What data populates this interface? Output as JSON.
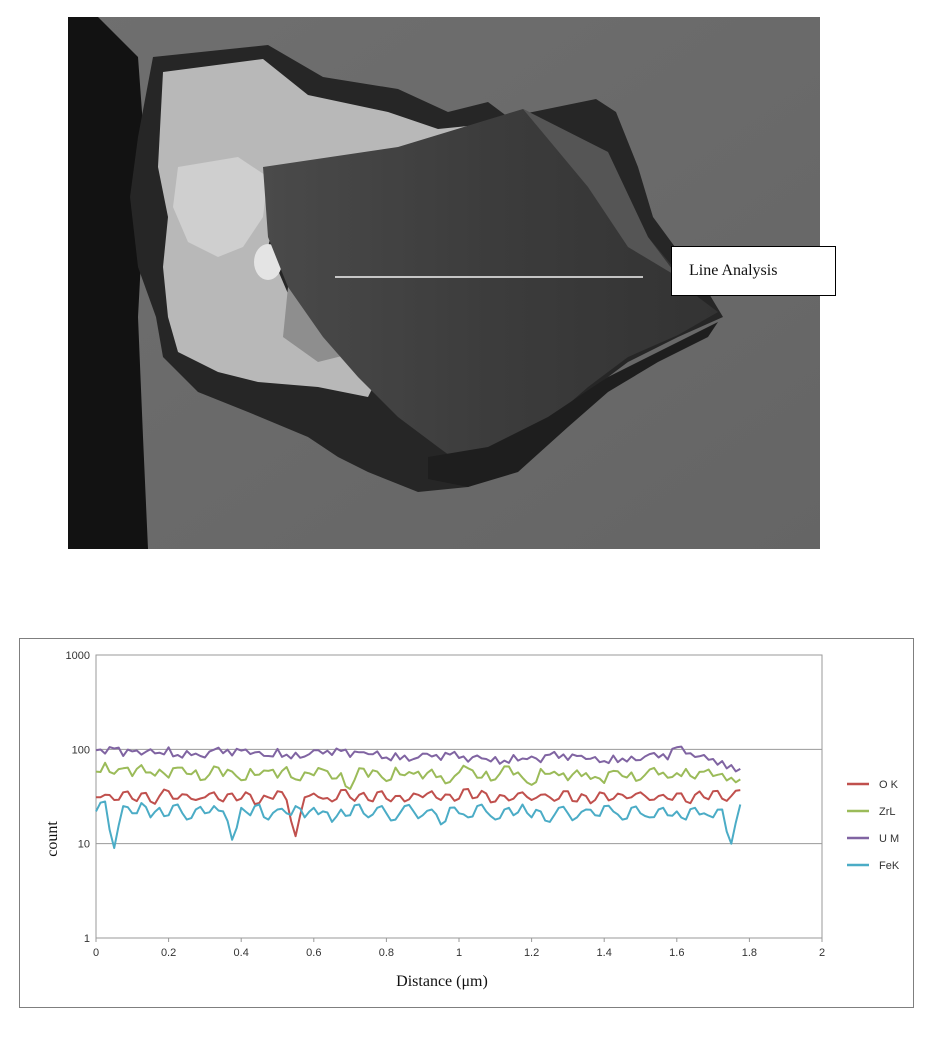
{
  "micrograph": {
    "callout_label": "Line Analysis"
  },
  "chart_data": {
    "type": "line",
    "xlabel": "Distance (μm)",
    "ylabel": "count",
    "xlim": [
      0,
      2
    ],
    "ylim": [
      1,
      1000
    ],
    "yscale": "log",
    "x_ticks": [
      "0",
      "0.2",
      "0.4",
      "0.6",
      "0.8",
      "1",
      "1.2",
      "1.4",
      "1.6",
      "1.8",
      "2"
    ],
    "y_ticks": [
      "1",
      "10",
      "100",
      "1000"
    ],
    "grid": "horizontal",
    "legend_position": "right",
    "x_start": 0,
    "x_step": 0.025,
    "series": [
      {
        "name": "O K",
        "color": "#c0504d",
        "values": [
          31,
          33,
          29,
          35,
          30,
          34,
          28,
          32,
          36,
          30,
          33,
          29,
          31,
          35,
          28,
          34,
          30,
          33,
          27,
          31,
          36,
          29,
          12,
          31,
          34,
          30,
          28,
          37,
          31,
          33,
          29,
          35,
          30,
          32,
          28,
          34,
          31,
          36,
          29,
          33,
          30,
          38,
          31,
          34,
          28,
          32,
          30,
          35,
          29,
          33,
          31,
          30,
          36,
          28,
          32,
          29,
          34,
          30,
          33,
          31,
          35,
          29,
          32,
          30,
          34,
          28,
          33,
          31,
          36,
          30,
          32,
          37
        ]
      },
      {
        "name": "ZrL",
        "color": "#9bbb59",
        "values": [
          58,
          72,
          55,
          63,
          52,
          68,
          57,
          61,
          50,
          64,
          55,
          60,
          48,
          66,
          52,
          58,
          47,
          62,
          54,
          59,
          50,
          65,
          48,
          57,
          53,
          61,
          49,
          56,
          38,
          63,
          51,
          58,
          46,
          64,
          53,
          55,
          49,
          61,
          52,
          45,
          57,
          63,
          50,
          58,
          48,
          66,
          54,
          50,
          42,
          62,
          55,
          53,
          47,
          60,
          56,
          51,
          44,
          59,
          52,
          57,
          48,
          61,
          54,
          50,
          56,
          62,
          49,
          58,
          52,
          55,
          50,
          48
        ]
      },
      {
        "name": "U M",
        "color": "#8064a2",
        "values": [
          98,
          90,
          102,
          85,
          95,
          88,
          100,
          92,
          105,
          87,
          96,
          90,
          82,
          99,
          91,
          86,
          97,
          89,
          94,
          85,
          101,
          88,
          92,
          84,
          98,
          90,
          87,
          96,
          83,
          93,
          89,
          95,
          82,
          91,
          86,
          79,
          90,
          84,
          77,
          88,
          81,
          74,
          86,
          79,
          83,
          76,
          87,
          80,
          84,
          73,
          88,
          81,
          77,
          85,
          79,
          83,
          75,
          86,
          80,
          84,
          77,
          89,
          82,
          78,
          105,
          90,
          83,
          87,
          79,
          75,
          68,
          62
        ]
      },
      {
        "name": "FeK",
        "color": "#4bacc6",
        "values": [
          22,
          28,
          9,
          25,
          21,
          27,
          19,
          24,
          20,
          26,
          18,
          23,
          21,
          25,
          22,
          11,
          24,
          20,
          26,
          18,
          23,
          21,
          25,
          19,
          24,
          22,
          17,
          23,
          20,
          26,
          19,
          24,
          21,
          18,
          25,
          22,
          20,
          23,
          16,
          24,
          21,
          19,
          25,
          22,
          18,
          23,
          20,
          26,
          19,
          22,
          17,
          24,
          21,
          19,
          23,
          20,
          25,
          22,
          18,
          24,
          21,
          19,
          23,
          20,
          22,
          18,
          24,
          21,
          19,
          23,
          10,
          26
        ]
      }
    ]
  }
}
